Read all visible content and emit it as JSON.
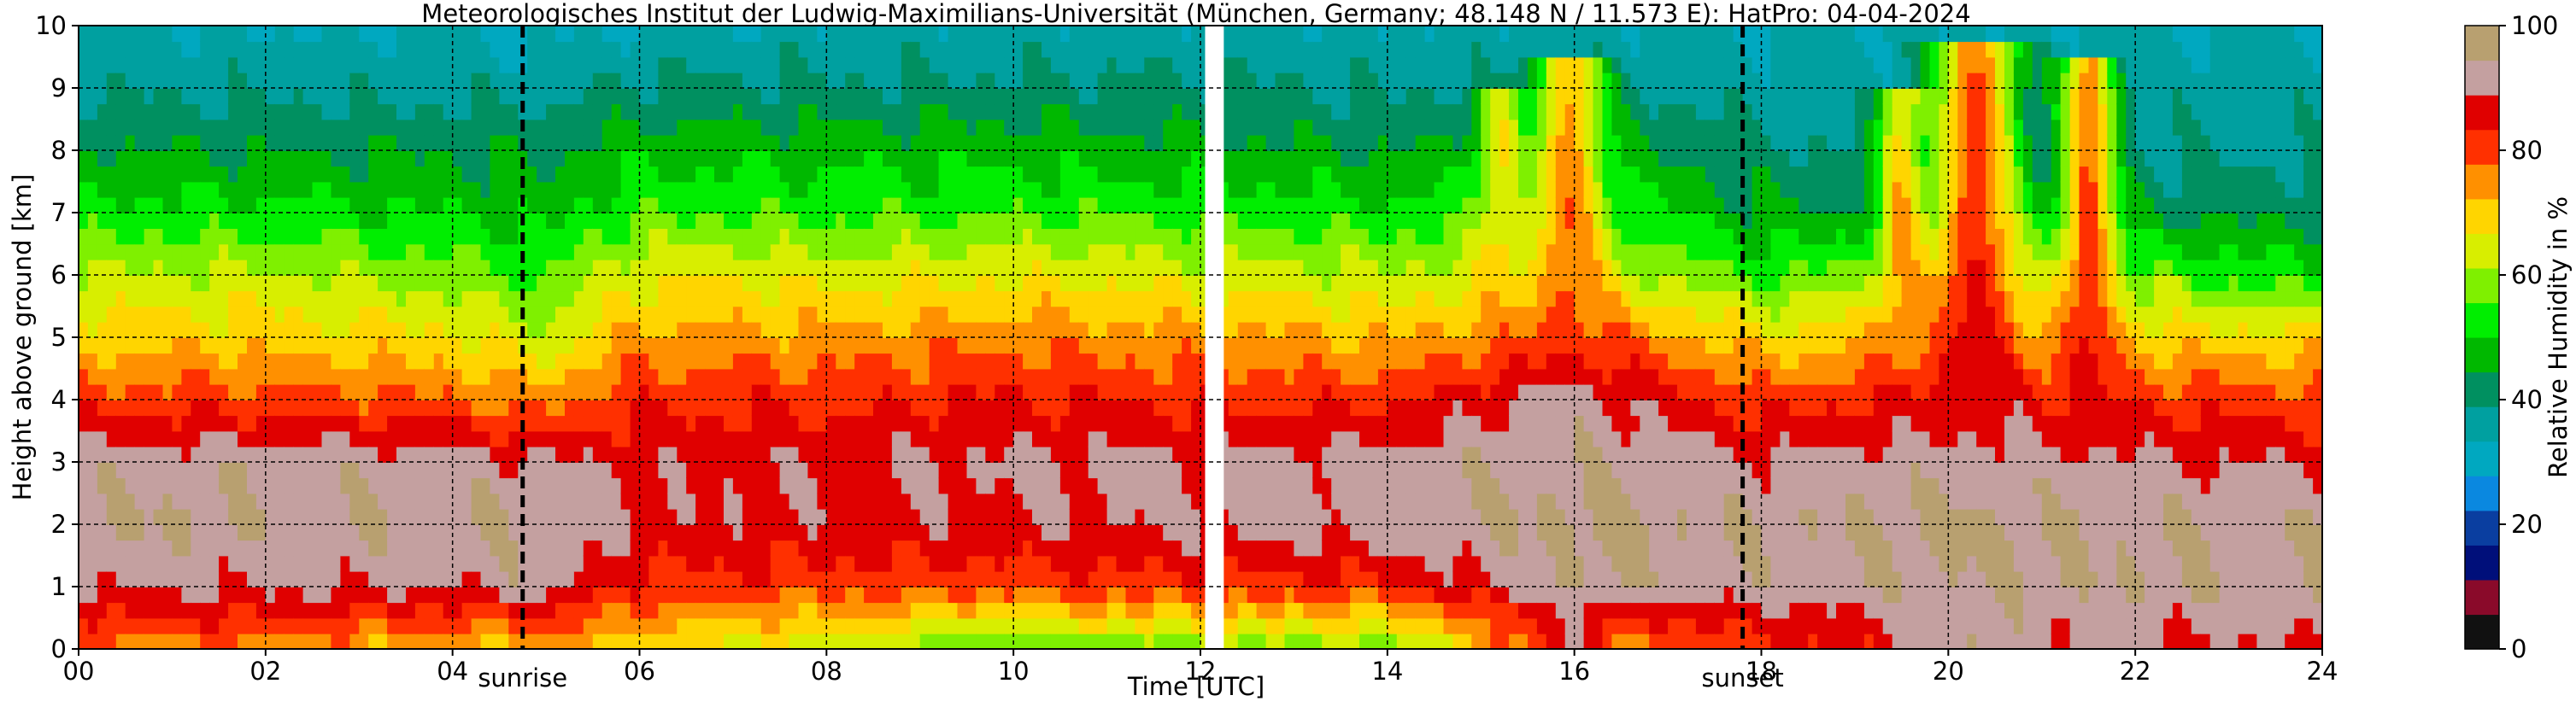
{
  "chart_data": {
    "type": "heatmap",
    "title": "Meteorologisches Institut der Ludwig-Maximilians-Universität (München, Germany; 48.148 N / 11.573 E):    HatPro: 04-04-2024",
    "xlabel": "Time [UTC]",
    "ylabel": "Height above ground [km]",
    "xlim": [
      0,
      24
    ],
    "ylim": [
      0,
      10
    ],
    "x_tick_labels": [
      "00",
      "02",
      "04",
      "06",
      "08",
      "10",
      "12",
      "14",
      "16",
      "18",
      "20",
      "22",
      "24"
    ],
    "y_tick_labels": [
      "0",
      "1",
      "2",
      "3",
      "4",
      "5",
      "6",
      "7",
      "8",
      "9",
      "10"
    ],
    "grid": true,
    "data_gap_hours": [
      12.05,
      12.25
    ],
    "colorbar": {
      "label": "Relative Humidity in %",
      "range": [
        0,
        100
      ],
      "tick_labels": [
        "0",
        "20",
        "40",
        "60",
        "80",
        "100"
      ],
      "colors": [
        "#111111",
        "#8a0a2a",
        "#000f7a",
        "#0a3ea0",
        "#0a88e0",
        "#00a8c0",
        "#00a0a0",
        "#009060",
        "#00b800",
        "#00ee00",
        "#7ff000",
        "#d8ee00",
        "#ffd500",
        "#ff9000",
        "#ff3000",
        "#e00000",
        "#c4a0a0",
        "#b8a070"
      ]
    },
    "annotations": [
      {
        "text": "sunrise",
        "x_hours": 4.75
      },
      {
        "text": "sunset",
        "x_hours": 17.8
      }
    ],
    "hour_profiles_pct": [
      {
        "hour": 0,
        "rh_by_km": [
          75,
          90,
          95,
          92,
          80,
          70,
          62,
          52,
          45,
          38,
          34
        ]
      },
      {
        "hour": 2,
        "rh_by_km": [
          76,
          90,
          94,
          93,
          80,
          70,
          62,
          52,
          44,
          38,
          33
        ]
      },
      {
        "hour": 4,
        "rh_by_km": [
          70,
          90,
          94,
          92,
          78,
          68,
          58,
          50,
          44,
          37,
          33
        ]
      },
      {
        "hour": 5,
        "rh_by_km": [
          72,
          92,
          94,
          90,
          75,
          62,
          55,
          48,
          43,
          37,
          32
        ]
      },
      {
        "hour": 6,
        "rh_by_km": [
          68,
          82,
          88,
          88,
          82,
          74,
          66,
          55,
          48,
          40,
          34
        ]
      },
      {
        "hour": 8,
        "rh_by_km": [
          62,
          80,
          88,
          88,
          82,
          74,
          65,
          54,
          48,
          40,
          34
        ]
      },
      {
        "hour": 10,
        "rh_by_km": [
          55,
          80,
          88,
          90,
          84,
          76,
          66,
          55,
          48,
          40,
          35
        ]
      },
      {
        "hour": 12,
        "rh_by_km": [
          58,
          82,
          90,
          90,
          82,
          74,
          64,
          54,
          46,
          40,
          35
        ]
      },
      {
        "hour": 14,
        "rh_by_km": [
          58,
          82,
          92,
          92,
          82,
          72,
          62,
          52,
          44,
          38,
          34
        ]
      },
      {
        "hour": 16,
        "rh_by_km": [
          72,
          95,
          96,
          94,
          92,
          80,
          65,
          55,
          48,
          40,
          35
        ]
      },
      {
        "hour": 18,
        "rh_by_km": [
          80,
          92,
          94,
          90,
          80,
          68,
          55,
          45,
          40,
          36,
          33
        ]
      },
      {
        "hour": 20,
        "rh_by_km": [
          88,
          94,
          95,
          92,
          86,
          75,
          60,
          45,
          38,
          36,
          34
        ]
      },
      {
        "hour": 22,
        "rh_by_km": [
          88,
          94,
          94,
          90,
          82,
          70,
          55,
          44,
          38,
          36,
          34
        ]
      },
      {
        "hour": 24,
        "rh_by_km": [
          88,
          94,
          94,
          88,
          80,
          68,
          52,
          42,
          38,
          36,
          34
        ]
      }
    ],
    "moist_plumes": [
      {
        "hour": 15.2,
        "width_h": 0.25,
        "top_km": 9.0,
        "peak_rh": 82
      },
      {
        "hour": 15.95,
        "width_h": 0.35,
        "top_km": 9.5,
        "peak_rh": 90
      },
      {
        "hour": 19.5,
        "width_h": 0.25,
        "top_km": 9.0,
        "peak_rh": 86
      },
      {
        "hour": 20.3,
        "width_h": 0.45,
        "top_km": 9.7,
        "peak_rh": 95
      },
      {
        "hour": 21.5,
        "width_h": 0.3,
        "top_km": 9.5,
        "peak_rh": 92
      },
      {
        "hour": 22.3,
        "width_h": 0.18,
        "top_km": 6.0,
        "peak_rh": 80
      }
    ]
  }
}
